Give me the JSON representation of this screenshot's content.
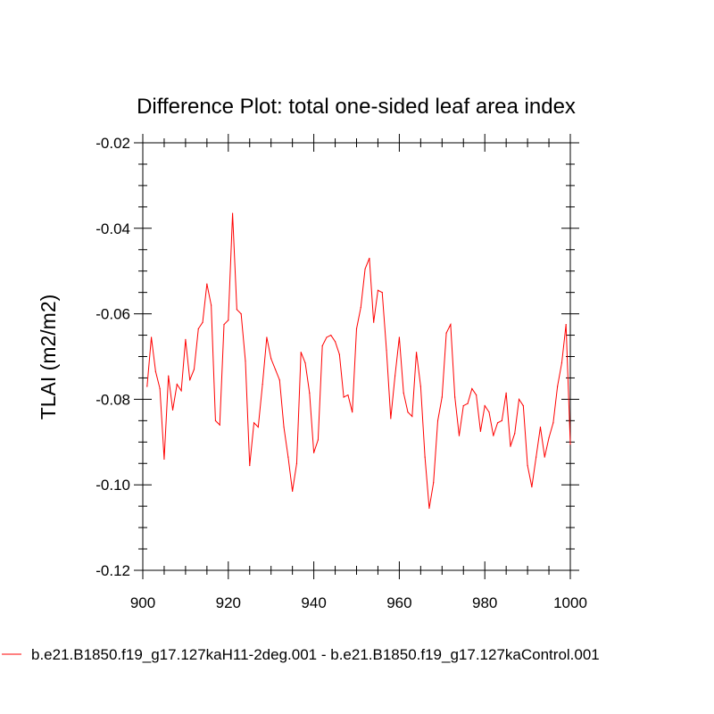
{
  "chart_data": {
    "type": "line",
    "title": "Difference Plot: total one-sided leaf area index",
    "xlabel": "",
    "ylabel": "TLAI  (m2/m2)",
    "xlim": [
      900,
      1000
    ],
    "ylim": [
      -0.12,
      -0.02
    ],
    "x_ticks": [
      "900",
      "920",
      "940",
      "960",
      "980",
      "1000"
    ],
    "y_ticks": [
      "-0.02",
      "-0.04",
      "-0.06",
      "-0.08",
      "-0.10",
      "-0.12"
    ],
    "grid": false,
    "legend_position": "bottom",
    "series": [
      {
        "name": "b.e21.B1850.f19_g17.127kaH11-2deg.001 - b.e21.B1850.f19_g17.127kaControl.001",
        "color": "#ff0000",
        "x": [
          901,
          902,
          903,
          904,
          905,
          906,
          907,
          908,
          909,
          910,
          911,
          912,
          913,
          914,
          915,
          916,
          917,
          918,
          919,
          920,
          921,
          922,
          923,
          924,
          925,
          926,
          927,
          928,
          929,
          930,
          931,
          932,
          933,
          934,
          935,
          936,
          937,
          938,
          939,
          940,
          941,
          942,
          943,
          944,
          945,
          946,
          947,
          948,
          949,
          950,
          951,
          952,
          953,
          954,
          955,
          956,
          957,
          958,
          959,
          960,
          961,
          962,
          963,
          964,
          965,
          966,
          967,
          968,
          969,
          970,
          971,
          972,
          973,
          974,
          975,
          976,
          977,
          978,
          979,
          980,
          981,
          982,
          983,
          984,
          985,
          986,
          987,
          988,
          989,
          990,
          991,
          992,
          993,
          994,
          995,
          996,
          997,
          998,
          999,
          1000
        ],
        "y": [
          -0.077,
          -0.0655,
          -0.0735,
          -0.0775,
          -0.094,
          -0.0745,
          -0.0825,
          -0.0765,
          -0.078,
          -0.066,
          -0.0755,
          -0.073,
          -0.0635,
          -0.062,
          -0.053,
          -0.058,
          -0.085,
          -0.086,
          -0.0625,
          -0.0615,
          -0.0365,
          -0.059,
          -0.06,
          -0.071,
          -0.0955,
          -0.0855,
          -0.0865,
          -0.0765,
          -0.0655,
          -0.0705,
          -0.073,
          -0.0755,
          -0.0865,
          -0.0935,
          -0.1015,
          -0.095,
          -0.069,
          -0.0715,
          -0.0785,
          -0.0925,
          -0.0895,
          -0.0675,
          -0.0655,
          -0.065,
          -0.0665,
          -0.0695,
          -0.0795,
          -0.079,
          -0.083,
          -0.0635,
          -0.0585,
          -0.0495,
          -0.047,
          -0.062,
          -0.0545,
          -0.055,
          -0.0685,
          -0.0845,
          -0.0745,
          -0.0655,
          -0.0785,
          -0.083,
          -0.084,
          -0.069,
          -0.077,
          -0.0935,
          -0.1055,
          -0.0995,
          -0.085,
          -0.0795,
          -0.0645,
          -0.0625,
          -0.0795,
          -0.0885,
          -0.0815,
          -0.081,
          -0.0775,
          -0.079,
          -0.0875,
          -0.0815,
          -0.083,
          -0.0885,
          -0.0855,
          -0.085,
          -0.0785,
          -0.091,
          -0.088,
          -0.08,
          -0.0815,
          -0.0955,
          -0.1005,
          -0.0935,
          -0.0865,
          -0.0935,
          -0.089,
          -0.0855,
          -0.077,
          -0.0715,
          -0.0625,
          -0.0905
        ]
      }
    ]
  }
}
